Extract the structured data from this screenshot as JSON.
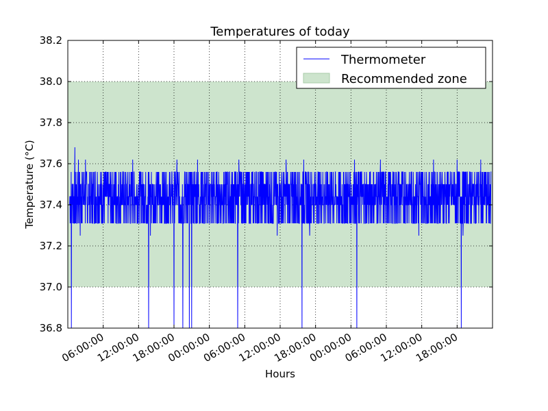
{
  "chart_data": {
    "type": "line",
    "title": "Temperatures of today",
    "xlabel": "Hours",
    "ylabel": "Temperature (°C)",
    "ylim": [
      36.8,
      38.2
    ],
    "y_ticks": [
      "36.8",
      "37.0",
      "37.2",
      "37.4",
      "37.6",
      "37.8",
      "38.0",
      "38.2"
    ],
    "x_tick_labels": [
      "06:00:00",
      "12:00:00",
      "18:00:00",
      "00:00:00",
      "06:00:00",
      "12:00:00",
      "18:00:00",
      "00:00:00",
      "06:00:00",
      "12:00:00",
      "18:00:00"
    ],
    "x_tick_hours": [
      6,
      12,
      18,
      24,
      30,
      36,
      42,
      48,
      54,
      60,
      66
    ],
    "xlim_hours": [
      0,
      72
    ],
    "grid": true,
    "legend_position": "top-right",
    "series": [
      {
        "name": "Thermometer",
        "color": "#0000ff",
        "typical_range": [
          37.3,
          37.56
        ],
        "x_hours": [
          0.3,
          0.6,
          0.9,
          1.2,
          1.5,
          1.8,
          2.1,
          2.4,
          2.7,
          3.0,
          3.3,
          3.6,
          4.0,
          5.0,
          6.0,
          7.0,
          8.0,
          9.0,
          10.0,
          11.0,
          12.0,
          13.0,
          13.5,
          13.7,
          14.0,
          15.0,
          16.0,
          17.0,
          18.0,
          18.2,
          18.5,
          19.0,
          19.5,
          20.0,
          20.2,
          20.6,
          21.0,
          21.2,
          22.0,
          23.0,
          24.0,
          25.0,
          26.0,
          27.0,
          28.0,
          28.8,
          29.0,
          30.0,
          31.0,
          32.0,
          33.0,
          34.0,
          35.0,
          35.5,
          36.0,
          37.0,
          38.0,
          39.0,
          39.7,
          40.0,
          40.5,
          41.0,
          42.0,
          42.5,
          43.0,
          44.0,
          45.0,
          46.0,
          47.0,
          48.0,
          48.6,
          49.0,
          49.5,
          50.0,
          51.0,
          52.0,
          53.0,
          54.0,
          55.0,
          56.0,
          57.0,
          58.0,
          59.0,
          59.5,
          60.0,
          61.0,
          62.0,
          63.0,
          64.0,
          65.0,
          66.0,
          66.7,
          67.0,
          68.0,
          69.0,
          70.0,
          71.0,
          71.8
        ],
        "values": [
          37.4,
          36.8,
          37.5,
          37.68,
          37.31,
          37.62,
          37.25,
          37.56,
          37.4,
          37.62,
          37.31,
          37.5,
          37.4,
          37.56,
          37.31,
          37.5,
          37.4,
          37.56,
          37.31,
          37.62,
          37.4,
          37.5,
          37.31,
          36.8,
          37.25,
          37.56,
          37.4,
          37.31,
          36.8,
          37.5,
          37.62,
          37.31,
          36.8,
          37.4,
          37.56,
          36.8,
          36.8,
          37.4,
          37.62,
          37.31,
          37.5,
          37.4,
          37.31,
          37.56,
          37.4,
          36.8,
          37.62,
          37.5,
          37.31,
          37.4,
          37.56,
          37.31,
          37.4,
          37.25,
          37.5,
          37.62,
          37.31,
          37.4,
          36.8,
          37.62,
          37.5,
          37.25,
          37.4,
          37.31,
          37.5,
          37.4,
          37.56,
          37.31,
          37.5,
          37.4,
          37.62,
          36.8,
          37.56,
          37.4,
          37.31,
          37.5,
          37.62,
          37.4,
          37.31,
          37.56,
          37.4,
          37.5,
          37.31,
          37.25,
          37.56,
          37.4,
          37.62,
          37.31,
          37.5,
          37.4,
          37.62,
          36.8,
          37.25,
          37.5,
          37.4,
          37.62,
          37.31,
          37.56
        ]
      },
      {
        "name": "Recommended zone",
        "type": "area",
        "color": "#cde4cd",
        "edge_color": "#a8cba8",
        "range": [
          37.0,
          38.0
        ]
      }
    ]
  }
}
